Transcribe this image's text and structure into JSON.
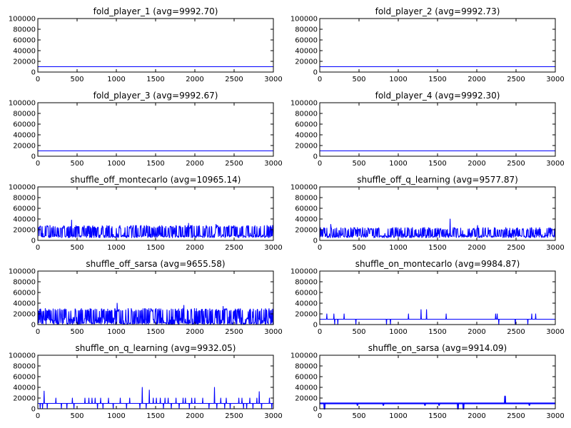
{
  "chart_data": [
    {
      "type": "line",
      "title": "fold_player_1 (avg=9992.70)",
      "xlim": [
        0,
        3000
      ],
      "ylim": [
        0,
        100000
      ],
      "xticks": [
        "0",
        "500",
        "1000",
        "1500",
        "2000",
        "2500",
        "3000"
      ],
      "yticks": [
        "0",
        "20000",
        "40000",
        "60000",
        "80000",
        "100000"
      ],
      "series": [
        {
          "color": "#0000ff",
          "pattern": "flat",
          "base": 10000
        }
      ]
    },
    {
      "type": "line",
      "title": "fold_player_2 (avg=9992.73)",
      "xlim": [
        0,
        3000
      ],
      "ylim": [
        0,
        100000
      ],
      "xticks": [
        "0",
        "500",
        "1000",
        "1500",
        "2000",
        "2500",
        "3000"
      ],
      "yticks": [
        "0",
        "20000",
        "40000",
        "60000",
        "80000",
        "100000"
      ],
      "series": [
        {
          "color": "#0000ff",
          "pattern": "flat",
          "base": 10000
        }
      ]
    },
    {
      "type": "line",
      "title": "fold_player_3 (avg=9992.67)",
      "xlim": [
        0,
        3000
      ],
      "ylim": [
        0,
        100000
      ],
      "xticks": [
        "0",
        "500",
        "1000",
        "1500",
        "2000",
        "2500",
        "3000"
      ],
      "yticks": [
        "0",
        "20000",
        "40000",
        "60000",
        "80000",
        "100000"
      ],
      "series": [
        {
          "color": "#0000ff",
          "pattern": "flat",
          "base": 10000
        }
      ]
    },
    {
      "type": "line",
      "title": "fold_player_4 (avg=9992.30)",
      "xlim": [
        0,
        3000
      ],
      "ylim": [
        0,
        100000
      ],
      "xticks": [
        "0",
        "500",
        "1000",
        "1500",
        "2000",
        "2500",
        "3000"
      ],
      "yticks": [
        "0",
        "20000",
        "40000",
        "60000",
        "80000",
        "100000"
      ],
      "series": [
        {
          "color": "#0000ff",
          "pattern": "flat",
          "base": 10000
        }
      ]
    },
    {
      "type": "line",
      "title": "shuffle_off_montecarlo (avg=10965.14)",
      "xlim": [
        0,
        3000
      ],
      "ylim": [
        0,
        100000
      ],
      "xticks": [
        "0",
        "500",
        "1000",
        "1500",
        "2000",
        "2500",
        "3000"
      ],
      "yticks": [
        "0",
        "20000",
        "40000",
        "60000",
        "80000",
        "100000"
      ],
      "series": [
        {
          "color": "#0000ff",
          "pattern": "dense",
          "base": 10000,
          "low": 5000,
          "high": 28000,
          "peaks": [
            [
              430,
              38000
            ],
            [
              1920,
              32000
            ],
            [
              2270,
              30000
            ]
          ]
        }
      ]
    },
    {
      "type": "line",
      "title": "shuffle_off_q_learning (avg=9577.87)",
      "xlim": [
        0,
        3000
      ],
      "ylim": [
        0,
        100000
      ],
      "xticks": [
        "0",
        "500",
        "1000",
        "1500",
        "2000",
        "2500",
        "3000"
      ],
      "yticks": [
        "0",
        "20000",
        "40000",
        "60000",
        "80000",
        "100000"
      ],
      "series": [
        {
          "color": "#0000ff",
          "pattern": "dense",
          "base": 10000,
          "low": 5000,
          "high": 24000,
          "peaks": [
            [
              1660,
              40000
            ],
            [
              140,
              30000
            ],
            [
              2010,
              28000
            ]
          ]
        }
      ]
    },
    {
      "type": "line",
      "title": "shuffle_off_sarsa (avg=9655.58)",
      "xlim": [
        0,
        3000
      ],
      "ylim": [
        0,
        100000
      ],
      "xticks": [
        "0",
        "500",
        "1000",
        "1500",
        "2000",
        "2500",
        "3000"
      ],
      "yticks": [
        "0",
        "20000",
        "40000",
        "60000",
        "80000",
        "100000"
      ],
      "series": [
        {
          "color": "#0000ff",
          "pattern": "dense",
          "base": 10000,
          "low": 0,
          "high": 30000,
          "peaks": [
            [
              1010,
              40000
            ],
            [
              1860,
              36000
            ],
            [
              2360,
              34000
            ]
          ]
        }
      ]
    },
    {
      "type": "line",
      "title": "shuffle_on_montecarlo (avg=9984.87)",
      "xlim": [
        0,
        3000
      ],
      "ylim": [
        0,
        100000
      ],
      "xticks": [
        "0",
        "500",
        "1000",
        "1500",
        "2000",
        "2500",
        "3000"
      ],
      "yticks": [
        "0",
        "20000",
        "40000",
        "60000",
        "80000",
        "100000"
      ],
      "series": [
        {
          "color": "#0000ff",
          "pattern": "spikes",
          "base": 10000,
          "spikes": [
            [
              90,
              20000
            ],
            [
              180,
              20000
            ],
            [
              190,
              0
            ],
            [
              230,
              0
            ],
            [
              310,
              20000
            ],
            [
              460,
              0
            ],
            [
              850,
              0
            ],
            [
              900,
              0
            ],
            [
              1130,
              20000
            ],
            [
              1290,
              28000
            ],
            [
              1360,
              28000
            ],
            [
              1610,
              20000
            ],
            [
              2240,
              20000
            ],
            [
              2260,
              20000
            ],
            [
              2280,
              0
            ],
            [
              2490,
              0
            ],
            [
              2650,
              0
            ],
            [
              2700,
              20000
            ],
            [
              2750,
              20000
            ],
            [
              2790,
              10000
            ]
          ]
        }
      ]
    },
    {
      "type": "line",
      "title": "shuffle_on_q_learning (avg=9932.05)",
      "xlim": [
        0,
        3000
      ],
      "ylim": [
        0,
        100000
      ],
      "xticks": [
        "0",
        "500",
        "1000",
        "1500",
        "2000",
        "2500",
        "3000"
      ],
      "yticks": [
        "0",
        "20000",
        "40000",
        "60000",
        "80000",
        "100000"
      ],
      "series": [
        {
          "color": "#0000ff",
          "pattern": "spikes",
          "base": 10000,
          "spikes": [
            [
              30,
              0
            ],
            [
              60,
              0
            ],
            [
              80,
              33000
            ],
            [
              120,
              0
            ],
            [
              230,
              20000
            ],
            [
              300,
              0
            ],
            [
              370,
              0
            ],
            [
              440,
              20000
            ],
            [
              460,
              0
            ],
            [
              600,
              20000
            ],
            [
              650,
              20000
            ],
            [
              690,
              20000
            ],
            [
              730,
              20000
            ],
            [
              760,
              0
            ],
            [
              800,
              20000
            ],
            [
              830,
              0
            ],
            [
              900,
              20000
            ],
            [
              960,
              0
            ],
            [
              1050,
              20000
            ],
            [
              1130,
              0
            ],
            [
              1170,
              20000
            ],
            [
              1300,
              0
            ],
            [
              1330,
              40000
            ],
            [
              1380,
              0
            ],
            [
              1420,
              35000
            ],
            [
              1470,
              20000
            ],
            [
              1510,
              20000
            ],
            [
              1560,
              20000
            ],
            [
              1600,
              0
            ],
            [
              1620,
              20000
            ],
            [
              1660,
              20000
            ],
            [
              1700,
              0
            ],
            [
              1760,
              20000
            ],
            [
              1800,
              0
            ],
            [
              1850,
              20000
            ],
            [
              1880,
              20000
            ],
            [
              1930,
              0
            ],
            [
              1960,
              20000
            ],
            [
              2000,
              20000
            ],
            [
              2100,
              20000
            ],
            [
              2180,
              0
            ],
            [
              2250,
              40000
            ],
            [
              2280,
              0
            ],
            [
              2330,
              20000
            ],
            [
              2380,
              0
            ],
            [
              2400,
              20000
            ],
            [
              2450,
              0
            ],
            [
              2560,
              20000
            ],
            [
              2600,
              20000
            ],
            [
              2620,
              0
            ],
            [
              2660,
              0
            ],
            [
              2700,
              20000
            ],
            [
              2740,
              0
            ],
            [
              2790,
              20000
            ],
            [
              2820,
              32000
            ],
            [
              2850,
              0
            ],
            [
              2950,
              20000
            ],
            [
              2980,
              0
            ]
          ]
        }
      ]
    },
    {
      "type": "line",
      "title": "shuffle_on_sarsa (avg=9914.09)",
      "xlim": [
        0,
        3000
      ],
      "ylim": [
        0,
        100000
      ],
      "xticks": [
        "0",
        "500",
        "1000",
        "1500",
        "2000",
        "2500",
        "3000"
      ],
      "yticks": [
        "0",
        "20000",
        "40000",
        "60000",
        "80000",
        "100000"
      ],
      "series": [
        {
          "color": "#0000ff",
          "pattern": "thick",
          "base": 10000,
          "spikes": [
            [
              60,
              0
            ],
            [
              480,
              7000
            ],
            [
              810,
              7000
            ],
            [
              1340,
              7000
            ],
            [
              1520,
              7000
            ],
            [
              1760,
              0
            ],
            [
              1830,
              0
            ],
            [
              2360,
              23000
            ],
            [
              2670,
              7000
            ]
          ]
        }
      ]
    }
  ]
}
